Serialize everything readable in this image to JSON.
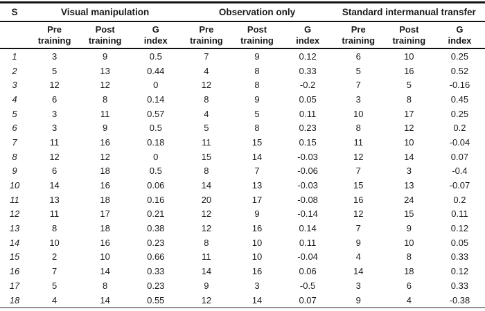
{
  "table": {
    "s_header": "S",
    "groups": [
      {
        "label": "Visual manipulation"
      },
      {
        "label": "Observation only"
      },
      {
        "label": "Standard intermanual transfer"
      }
    ],
    "sub_headers": [
      "Pre\ntraining",
      "Post\ntraining",
      "G\nindex"
    ],
    "rows": [
      {
        "s": "1",
        "values": [
          "3",
          "9",
          "0.5",
          "7",
          "9",
          "0.12",
          "6",
          "10",
          "0.25"
        ]
      },
      {
        "s": "2",
        "values": [
          "5",
          "13",
          "0.44",
          "4",
          "8",
          "0.33",
          "5",
          "16",
          "0.52"
        ]
      },
      {
        "s": "3",
        "values": [
          "12",
          "12",
          "0",
          "12",
          "8",
          "-0.2",
          "7",
          "5",
          "-0.16"
        ]
      },
      {
        "s": "4",
        "values": [
          "6",
          "8",
          "0.14",
          "8",
          "9",
          "0.05",
          "3",
          "8",
          "0.45"
        ]
      },
      {
        "s": "5",
        "values": [
          "3",
          "11",
          "0.57",
          "4",
          "5",
          "0.11",
          "10",
          "17",
          "0.25"
        ]
      },
      {
        "s": "6",
        "values": [
          "3",
          "9",
          "0.5",
          "5",
          "8",
          "0.23",
          "8",
          "12",
          "0.2"
        ]
      },
      {
        "s": "7",
        "values": [
          "11",
          "16",
          "0.18",
          "11",
          "15",
          "0.15",
          "11",
          "10",
          "-0.04"
        ]
      },
      {
        "s": "8",
        "values": [
          "12",
          "12",
          "0",
          "15",
          "14",
          "-0.03",
          "12",
          "14",
          "0.07"
        ]
      },
      {
        "s": "9",
        "values": [
          "6",
          "18",
          "0.5",
          "8",
          "7",
          "-0.06",
          "7",
          "3",
          "-0.4"
        ]
      },
      {
        "s": "10",
        "values": [
          "14",
          "16",
          "0.06",
          "14",
          "13",
          "-0.03",
          "15",
          "13",
          "-0.07"
        ]
      },
      {
        "s": "11",
        "values": [
          "13",
          "18",
          "0.16",
          "20",
          "17",
          "-0.08",
          "16",
          "24",
          "0.2"
        ]
      },
      {
        "s": "12",
        "values": [
          "11",
          "17",
          "0.21",
          "12",
          "9",
          "-0.14",
          "12",
          "15",
          "0.11"
        ]
      },
      {
        "s": "13",
        "values": [
          "8",
          "18",
          "0.38",
          "12",
          "16",
          "0.14",
          "7",
          "9",
          "0.12"
        ]
      },
      {
        "s": "14",
        "values": [
          "10",
          "16",
          "0.23",
          "8",
          "10",
          "0.11",
          "9",
          "10",
          "0.05"
        ]
      },
      {
        "s": "15",
        "values": [
          "2",
          "10",
          "0.66",
          "11",
          "10",
          "-0.04",
          "4",
          "8",
          "0.33"
        ]
      },
      {
        "s": "16",
        "values": [
          "7",
          "14",
          "0.33",
          "14",
          "16",
          "0.06",
          "14",
          "18",
          "0.12"
        ]
      },
      {
        "s": "17",
        "values": [
          "5",
          "8",
          "0.23",
          "9",
          "3",
          "-0.5",
          "3",
          "6",
          "0.33"
        ]
      },
      {
        "s": "18",
        "values": [
          "4",
          "14",
          "0.55",
          "12",
          "14",
          "0.07",
          "9",
          "4",
          "-0.38"
        ]
      }
    ]
  }
}
